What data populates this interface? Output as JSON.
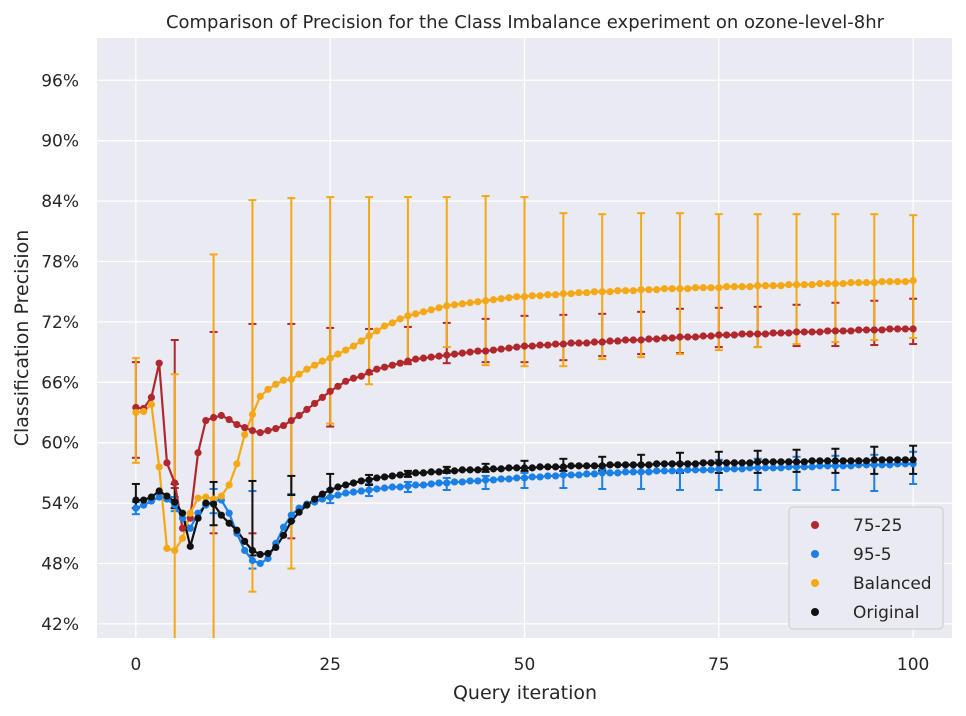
{
  "chart_data": {
    "type": "line",
    "title": "Comparison of Precision for the Class Imbalance experiment on ozone-level-8hr",
    "xlabel": "Query iteration",
    "ylabel": "Classification Precision",
    "xlim": [
      -5,
      105
    ],
    "ylim": [
      40.6,
      100.2
    ],
    "xticks": [
      0,
      25,
      50,
      75,
      100
    ],
    "yticks": [
      42,
      48,
      54,
      60,
      66,
      72,
      78,
      84,
      90,
      96
    ],
    "ytick_format": "percent",
    "grid": true,
    "legend_position": "bottom-right",
    "x": [
      0,
      1,
      2,
      3,
      4,
      5,
      6,
      7,
      8,
      9,
      10,
      11,
      12,
      13,
      14,
      15,
      16,
      17,
      18,
      19,
      20,
      21,
      22,
      23,
      24,
      25,
      26,
      27,
      28,
      29,
      30,
      31,
      32,
      33,
      34,
      35,
      36,
      37,
      38,
      39,
      40,
      41,
      42,
      43,
      44,
      45,
      46,
      47,
      48,
      49,
      50,
      51,
      52,
      53,
      54,
      55,
      56,
      57,
      58,
      59,
      60,
      61,
      62,
      63,
      64,
      65,
      66,
      67,
      68,
      69,
      70,
      71,
      72,
      73,
      74,
      75,
      76,
      77,
      78,
      79,
      80,
      81,
      82,
      83,
      84,
      85,
      86,
      87,
      88,
      89,
      90,
      91,
      92,
      93,
      94,
      95,
      96,
      97,
      98,
      99,
      100
    ],
    "series": [
      {
        "name": "75-25",
        "color": "#b0282e",
        "values": [
          63.5,
          63.4,
          64.5,
          67.9,
          58,
          56,
          51.5,
          52.5,
          59,
          62.2,
          62.5,
          62.7,
          62.3,
          61.8,
          61.5,
          61.2,
          61,
          61.2,
          61.4,
          61.7,
          62.2,
          62.7,
          63.3,
          63.9,
          64.5,
          65.1,
          65.6,
          66.1,
          66.4,
          66.6,
          67,
          67.3,
          67.5,
          67.7,
          67.9,
          68.1,
          68.3,
          68.4,
          68.5,
          68.6,
          68.7,
          68.8,
          68.9,
          69,
          69.1,
          69.1,
          69.2,
          69.3,
          69.4,
          69.5,
          69.6,
          69.6,
          69.7,
          69.7,
          69.8,
          69.8,
          69.9,
          69.9,
          69.9,
          70,
          70,
          70.1,
          70.1,
          70.2,
          70.2,
          70.2,
          70.3,
          70.3,
          70.4,
          70.4,
          70.5,
          70.5,
          70.5,
          70.6,
          70.6,
          70.7,
          70.7,
          70.7,
          70.8,
          70.8,
          70.8,
          70.8,
          70.9,
          70.9,
          70.9,
          71,
          71,
          71,
          71,
          71.1,
          71.1,
          71.1,
          71.1,
          71.2,
          71.2,
          71.2,
          71.2,
          71.3,
          71.3,
          71.3,
          71.3
        ],
        "error_x": [
          0,
          5,
          10,
          15,
          20,
          25,
          30,
          35,
          40,
          45,
          50,
          55,
          60,
          65,
          70,
          75,
          80,
          85,
          90,
          95,
          100
        ],
        "error_lower": [
          58.5,
          55.5,
          51,
          51,
          50.5,
          61.6,
          66.8,
          67.8,
          67.9,
          68,
          68,
          68.2,
          68.6,
          68.8,
          68.9,
          69.5,
          69.5,
          69.6,
          69.6,
          69.7,
          69.8
        ],
        "error_upper": [
          68,
          70.2,
          71,
          71.8,
          71.8,
          71.4,
          71.3,
          71.5,
          71.9,
          72.3,
          72.6,
          72.7,
          72.8,
          73,
          73.3,
          73.4,
          73.5,
          73.7,
          73.9,
          74.1,
          74.3
        ]
      },
      {
        "name": "95-5",
        "color": "#1a80e8",
        "values": [
          53.5,
          53.8,
          54.2,
          54.6,
          54.4,
          53.8,
          52.5,
          51.5,
          53,
          53.8,
          54.2,
          54.3,
          53,
          51,
          49.3,
          48.3,
          48,
          48.5,
          50,
          51.6,
          52.8,
          53.5,
          53.9,
          54.1,
          54.4,
          54.6,
          54.8,
          55,
          55.1,
          55.2,
          55.3,
          55.4,
          55.5,
          55.6,
          55.6,
          55.7,
          55.8,
          55.8,
          55.9,
          56,
          56,
          56.1,
          56.1,
          56.2,
          56.2,
          56.3,
          56.3,
          56.4,
          56.4,
          56.5,
          56.5,
          56.6,
          56.6,
          56.7,
          56.7,
          56.8,
          56.8,
          56.8,
          56.9,
          56.9,
          57,
          57,
          57,
          57.1,
          57.1,
          57.1,
          57.1,
          57.2,
          57.2,
          57.2,
          57.2,
          57.3,
          57.3,
          57.3,
          57.3,
          57.4,
          57.4,
          57.4,
          57.4,
          57.5,
          57.5,
          57.5,
          57.5,
          57.5,
          57.6,
          57.6,
          57.6,
          57.6,
          57.7,
          57.7,
          57.7,
          57.7,
          57.7,
          57.8,
          57.8,
          57.8,
          57.8,
          57.8,
          57.9,
          57.9,
          57.9
        ],
        "error_x": [
          0,
          5,
          10,
          15,
          20,
          25,
          30,
          35,
          40,
          45,
          50,
          55,
          60,
          65,
          70,
          75,
          80,
          85,
          90,
          95,
          100
        ],
        "error_lower": [
          52.9,
          53.2,
          53,
          47.5,
          52.2,
          54,
          54.7,
          55.1,
          55.3,
          55.4,
          55.5,
          55.5,
          55.4,
          55.4,
          55.3,
          55.3,
          55.3,
          55.3,
          55.3,
          55.2,
          55.9
        ],
        "error_upper": [
          54.1,
          54.6,
          55.4,
          55.2,
          54.9,
          55.4,
          55.9,
          56.1,
          56.5,
          56.7,
          57,
          57.2,
          57.4,
          57.8,
          58,
          58.3,
          58.4,
          58.6,
          58.7,
          58.8,
          59.1
        ]
      },
      {
        "name": "Balanced",
        "color": "#f5a816",
        "values": [
          63,
          63.1,
          63.8,
          57.6,
          49.5,
          49.3,
          50.5,
          53,
          54.5,
          54.6,
          54.4,
          54.7,
          55.8,
          57.9,
          60.8,
          62.8,
          64.6,
          65.3,
          65.8,
          66.2,
          66.3,
          66.8,
          67.3,
          67.7,
          68.1,
          68.4,
          68.8,
          69.2,
          69.6,
          70.1,
          70.6,
          71.1,
          71.6,
          71.9,
          72.3,
          72.6,
          72.8,
          73,
          73.2,
          73.4,
          73.6,
          73.7,
          73.8,
          73.9,
          74,
          74.1,
          74.2,
          74.3,
          74.4,
          74.5,
          74.5,
          74.6,
          74.6,
          74.7,
          74.7,
          74.8,
          74.8,
          74.9,
          74.9,
          75,
          75,
          75,
          75.1,
          75.1,
          75.1,
          75.2,
          75.2,
          75.2,
          75.3,
          75.3,
          75.3,
          75.3,
          75.4,
          75.4,
          75.4,
          75.4,
          75.5,
          75.5,
          75.5,
          75.5,
          75.6,
          75.6,
          75.6,
          75.6,
          75.7,
          75.7,
          75.7,
          75.7,
          75.8,
          75.8,
          75.8,
          75.8,
          75.9,
          75.9,
          75.9,
          75.9,
          76,
          76,
          76,
          76,
          76.1
        ],
        "error_x": [
          0,
          5,
          10,
          15,
          20,
          25,
          30,
          35,
          40,
          45,
          50,
          55,
          60,
          65,
          70,
          75,
          80,
          85,
          90,
          95,
          100
        ],
        "error_lower": [
          58,
          36,
          32,
          45.2,
          47.5,
          61.9,
          65.8,
          68,
          69.5,
          67.7,
          67.6,
          67.6,
          68.3,
          68.5,
          68.8,
          69.2,
          69.5,
          69.8,
          70,
          70.2,
          70.4
        ],
        "error_upper": [
          68.4,
          66.8,
          78.7,
          84.1,
          84.3,
          84.4,
          84.4,
          84.4,
          84.4,
          84.5,
          84.4,
          82.8,
          82.7,
          82.8,
          82.8,
          82.7,
          82.7,
          82.7,
          82.7,
          82.7,
          82.6
        ]
      },
      {
        "name": "Original",
        "color": "#111111",
        "values": [
          54.3,
          54.3,
          54.6,
          55.2,
          54.7,
          54.1,
          53,
          49.7,
          52.5,
          54,
          53.9,
          52.8,
          52,
          51.3,
          50.2,
          49.3,
          48.9,
          49,
          49.6,
          50.8,
          52.2,
          53.1,
          53.8,
          54.4,
          54.9,
          55.3,
          55.6,
          55.8,
          56,
          56.2,
          56.3,
          56.5,
          56.6,
          56.7,
          56.8,
          56.9,
          57,
          57,
          57.1,
          57.1,
          57.2,
          57.2,
          57.3,
          57.3,
          57.3,
          57.4,
          57.4,
          57.4,
          57.5,
          57.5,
          57.5,
          57.5,
          57.6,
          57.6,
          57.6,
          57.6,
          57.7,
          57.7,
          57.7,
          57.7,
          57.7,
          57.8,
          57.8,
          57.8,
          57.8,
          57.8,
          57.8,
          57.9,
          57.9,
          57.9,
          57.9,
          57.9,
          57.9,
          58,
          58,
          58,
          58,
          58,
          58,
          58,
          58.1,
          58.1,
          58.1,
          58.1,
          58.1,
          58.1,
          58.1,
          58.2,
          58.2,
          58.2,
          58.2,
          58.2,
          58.2,
          58.2,
          58.2,
          58.3,
          58.3,
          58.3,
          58.3,
          58.3,
          58.3
        ],
        "error_x": [
          0,
          5,
          10,
          15,
          20,
          25,
          30,
          35,
          40,
          45,
          50,
          55,
          60,
          65,
          70,
          75,
          80,
          85,
          90,
          95,
          100
        ],
        "error_lower": [
          53.5,
          53.5,
          51.8,
          48.8,
          54.8,
          54.6,
          55.8,
          56.6,
          57,
          57.1,
          57.2,
          57.2,
          57.2,
          57.1,
          57,
          57,
          57,
          57.1,
          57,
          56.9,
          56.9
        ],
        "error_upper": [
          55.9,
          55.9,
          56.1,
          56.2,
          56.7,
          56.9,
          56.8,
          57.2,
          57.6,
          57.9,
          58.2,
          58.4,
          58.6,
          58.8,
          59,
          59.1,
          59.2,
          59.3,
          59.4,
          59.6,
          59.7
        ]
      }
    ]
  }
}
